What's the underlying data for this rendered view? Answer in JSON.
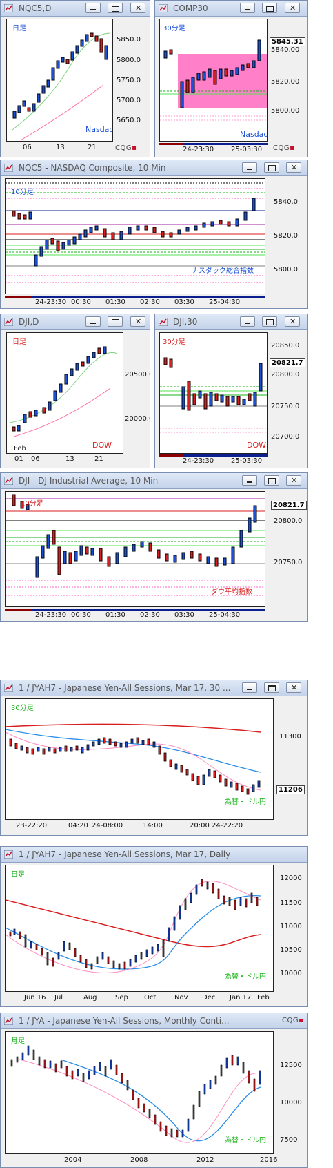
{
  "colors": {
    "up": "#1a4fd6",
    "down": "#d81e1e",
    "pink": "#ff66c4",
    "magenta": "#a020a0",
    "green": "#19b219",
    "lime": "#53e053",
    "maroon": "#8b0000",
    "navy": "#0b1f8f",
    "brand": "#c8102e"
  },
  "brand": {
    "text": "CQG"
  },
  "windows": [
    {
      "id": "w1",
      "title": "NQC5,D",
      "tag": "日足",
      "tag2": "Nasdaq",
      "yticks": [
        "5850.0",
        "5800.0",
        "5750.0",
        "5700.0",
        "5650.0"
      ],
      "xticks": [
        "06",
        "13",
        "21"
      ]
    },
    {
      "id": "w2",
      "title": "COMP30",
      "tag": "30分足",
      "tag2": "Nasdaq",
      "yticks": [
        "5840.00",
        "5820.00",
        "5800.00"
      ],
      "price": "5845.31",
      "xticks": [
        "24-23:30",
        "25-03:30"
      ]
    },
    {
      "id": "w3",
      "title": "NQC5 - NASDAQ Composite, 10 Min",
      "tag": "10分足",
      "tag2": "ナスダック総合指数",
      "yticks": [
        "5840.0",
        "5820.0",
        "5800.0"
      ],
      "xticks": [
        "24-23:30",
        "00:30",
        "01:30",
        "02:30",
        "03:30",
        "25-04:30"
      ]
    },
    {
      "id": "w4",
      "title": "DJI,D",
      "tag": "日足",
      "tag2": "DOW",
      "tag3": "Feb",
      "yticks": [
        "20500.0",
        "20000.0"
      ],
      "xticks": [
        "01",
        "06",
        "13",
        "21"
      ]
    },
    {
      "id": "w5",
      "title": "DJI,30",
      "tag": "30分足",
      "tag2": "DOW",
      "yticks": [
        "20850.0",
        "20800.0",
        "20750.0",
        "20700.0"
      ],
      "price": "20821.7",
      "xticks": [
        "24-23:30",
        "25-03:30"
      ]
    },
    {
      "id": "w6",
      "title": "DJI - DJ Industrial Average, 10 Min",
      "tag": "10分足",
      "tag2": "ダウ平均指数",
      "yticks": [
        "20800.0",
        "20750.0"
      ],
      "price": "20821.7",
      "xticks": [
        "24-23:30",
        "00:30",
        "01:30",
        "02:30",
        "03:30",
        "25-04:30"
      ]
    },
    {
      "id": "w7",
      "title": "1 / JYAH7 - Japanese Yen-All Sessions, Mar 17, 30 ...",
      "tag": "30分足",
      "tag2": "為替・ドル円",
      "yticks": [
        "11300"
      ],
      "price": "11206",
      "xticks": [
        "23-22:20",
        "04:20",
        "24-08:00",
        "14:00",
        "20:00",
        "24-22:20"
      ]
    },
    {
      "id": "w8",
      "title": "1 / JYAH7 - Japanese Yen-All Sessions, Mar 17, Daily",
      "tag": "日足",
      "tag2": "為替・ドル円",
      "yticks": [
        "12000",
        "11500",
        "11000",
        "10500",
        "10000"
      ],
      "xticks": [
        "Jun 16",
        "Jul",
        "Aug",
        "Sep",
        "Oct",
        "Nov",
        "Dec",
        "Jan 17",
        "Feb"
      ]
    },
    {
      "id": "w9",
      "title": "1 / JYA - Japanese Yen-All Sessions, Monthly Conti...",
      "tag": "月足",
      "tag2": "為替・ドル円",
      "yticks": [
        "12500",
        "10000",
        "7500"
      ],
      "xticks": [
        "2004",
        "2008",
        "2012",
        "2016"
      ]
    }
  ]
}
